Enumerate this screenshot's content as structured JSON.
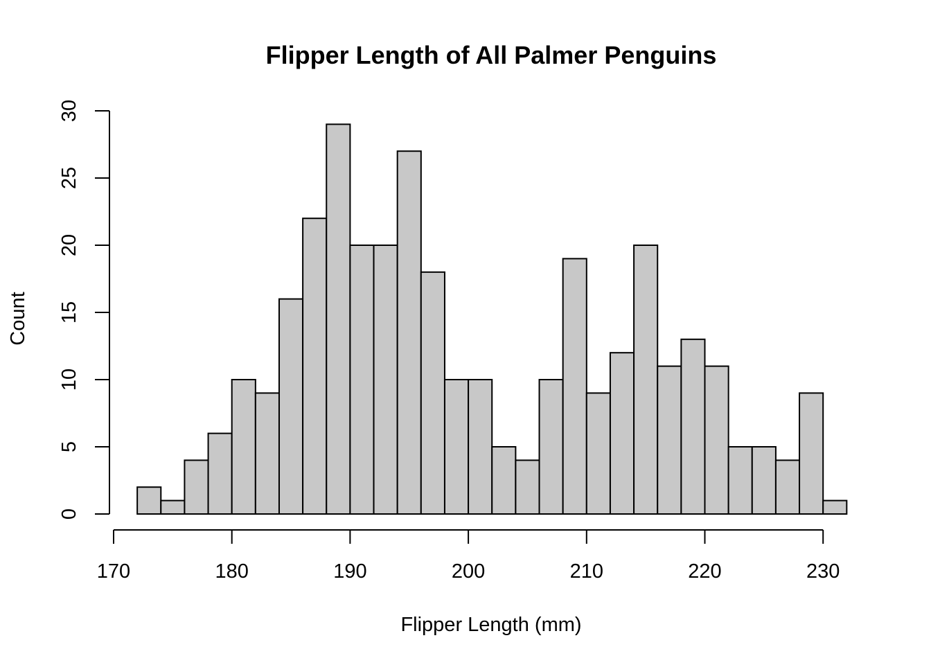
{
  "chart_data": {
    "type": "bar",
    "title": "Flipper Length of All Palmer Penguins",
    "xlabel": "Flipper Length (mm)",
    "ylabel": "Count",
    "bin_width": 2,
    "bins": [
      {
        "start": 172,
        "end": 174,
        "count": 2
      },
      {
        "start": 174,
        "end": 176,
        "count": 1
      },
      {
        "start": 176,
        "end": 178,
        "count": 4
      },
      {
        "start": 178,
        "end": 180,
        "count": 6
      },
      {
        "start": 180,
        "end": 182,
        "count": 10
      },
      {
        "start": 182,
        "end": 184,
        "count": 9
      },
      {
        "start": 184,
        "end": 186,
        "count": 16
      },
      {
        "start": 186,
        "end": 188,
        "count": 22
      },
      {
        "start": 188,
        "end": 190,
        "count": 29
      },
      {
        "start": 190,
        "end": 192,
        "count": 20
      },
      {
        "start": 192,
        "end": 194,
        "count": 20
      },
      {
        "start": 194,
        "end": 196,
        "count": 27
      },
      {
        "start": 196,
        "end": 198,
        "count": 18
      },
      {
        "start": 198,
        "end": 200,
        "count": 10
      },
      {
        "start": 200,
        "end": 202,
        "count": 10
      },
      {
        "start": 202,
        "end": 204,
        "count": 5
      },
      {
        "start": 204,
        "end": 206,
        "count": 4
      },
      {
        "start": 206,
        "end": 208,
        "count": 10
      },
      {
        "start": 208,
        "end": 210,
        "count": 19
      },
      {
        "start": 210,
        "end": 212,
        "count": 9
      },
      {
        "start": 212,
        "end": 214,
        "count": 12
      },
      {
        "start": 214,
        "end": 216,
        "count": 20
      },
      {
        "start": 216,
        "end": 218,
        "count": 11
      },
      {
        "start": 218,
        "end": 220,
        "count": 13
      },
      {
        "start": 220,
        "end": 222,
        "count": 11
      },
      {
        "start": 222,
        "end": 224,
        "count": 5
      },
      {
        "start": 224,
        "end": 226,
        "count": 5
      },
      {
        "start": 226,
        "end": 228,
        "count": 4
      },
      {
        "start": 228,
        "end": 230,
        "count": 9
      },
      {
        "start": 230,
        "end": 232,
        "count": 1
      }
    ],
    "x_ticks": [
      170,
      180,
      190,
      200,
      210,
      220,
      230
    ],
    "y_ticks": [
      0,
      5,
      10,
      15,
      20,
      25,
      30
    ],
    "xlim": [
      170,
      230
    ],
    "ylim": [
      0,
      30
    ],
    "grid": false,
    "legend": "none",
    "colors": {
      "bar_fill": "#c8c8c8",
      "bar_stroke": "#000000"
    }
  }
}
